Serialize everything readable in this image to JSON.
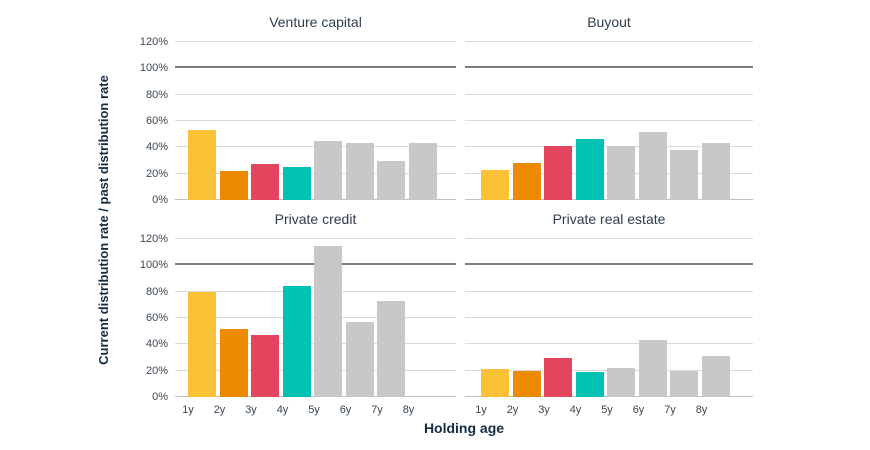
{
  "chart_data": {
    "type": "bar",
    "layout": "2x2-small-multiples",
    "xlabel": "Holding age",
    "ylabel": "Current distribution rate / past distribution rate",
    "categories": [
      "1y",
      "2y",
      "3y",
      "4y",
      "5y",
      "6y",
      "7y",
      "8y"
    ],
    "yticks": [
      0,
      20,
      40,
      60,
      80,
      100,
      120
    ],
    "ytick_suffix": "%",
    "ylim": [
      0,
      120
    ],
    "reference_line": 100,
    "grid": "horizontal",
    "legend": "none",
    "bar_colors": [
      "#fcc237",
      "#ee8a00",
      "#e4455e",
      "#00c2b2",
      "#c7c8c7",
      "#c7c8c7",
      "#c7c8c7",
      "#c7c8c7"
    ],
    "panels": [
      {
        "id": "venture-capital",
        "title": "Venture capital",
        "values": [
          53,
          22,
          27,
          25,
          45,
          43,
          30,
          43
        ]
      },
      {
        "id": "buyout",
        "title": "Buyout",
        "values": [
          23,
          28,
          41,
          46,
          41,
          52,
          38,
          43
        ]
      },
      {
        "id": "private-credit",
        "title": "Private credit",
        "values": [
          80,
          52,
          47,
          84,
          115,
          57,
          73,
          null
        ]
      },
      {
        "id": "private-real-estate",
        "title": "Private real estate",
        "values": [
          21,
          20,
          30,
          19,
          22,
          43,
          20,
          31
        ]
      }
    ],
    "style_colors": {
      "gridline": "#dadada",
      "reference_line": "#7d7d7d",
      "zero_line": "#c2c2c2",
      "title_text": "#2e3d4c",
      "tick_text": "#3a4754",
      "axis_title_text": "#142c42",
      "background": "#ffffff"
    }
  }
}
